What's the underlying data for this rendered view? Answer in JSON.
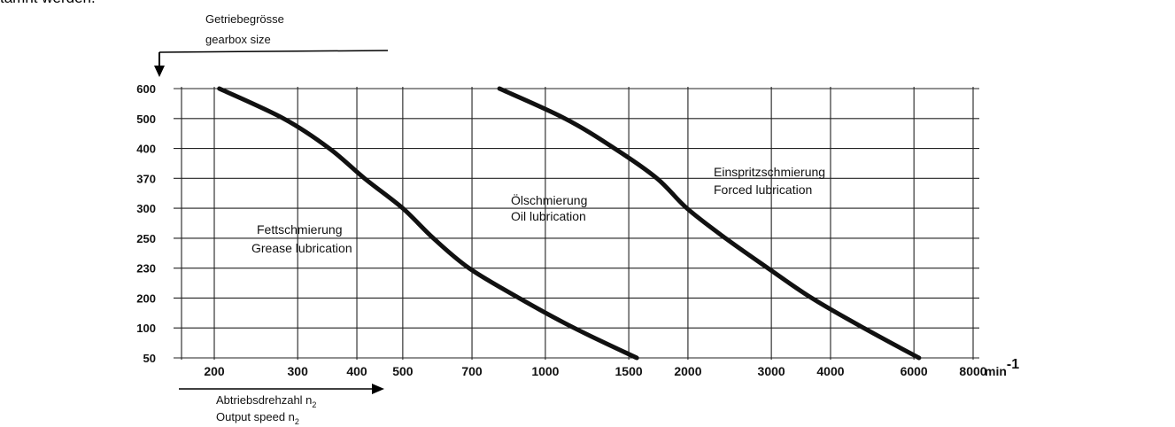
{
  "page": {
    "top_text": "tamnt werden."
  },
  "chart_data": {
    "type": "line",
    "y_label_de": "Getriebegrösse",
    "y_label_en": "gearbox size",
    "x_label_de": "Abtriebsdrehzahl n",
    "x_label_en": "Output speed n",
    "x_label_sub": "2",
    "x_unit": "min",
    "x_unit_exp": "-1",
    "y_categories": [
      "600",
      "500",
      "400",
      "370",
      "300",
      "250",
      "230",
      "200",
      "100",
      "50"
    ],
    "x_ticks": [
      "200",
      "300",
      "400",
      "500",
      "700",
      "1000",
      "1500",
      "2000",
      "3000",
      "4000",
      "6000",
      "8000"
    ],
    "x_scale": "log",
    "x_range": [
      200,
      8000
    ],
    "grid": true,
    "regions": [
      {
        "line1": "Fettschmierung",
        "line2": "Grease lubrication"
      },
      {
        "line1": "Ölschmierung",
        "line2": "Oil lubrication"
      },
      {
        "line1": "Einspritzschmierung",
        "line2": "Forced lubrication"
      }
    ],
    "series": [
      {
        "points": [
          {
            "y": "600",
            "x": 205
          },
          {
            "y": "500",
            "x": 280
          },
          {
            "y": "400",
            "x": 350
          },
          {
            "y": "370",
            "x": 415
          },
          {
            "y": "300",
            "x": 500
          },
          {
            "y": "250",
            "x": 580
          },
          {
            "y": "230",
            "x": 690
          },
          {
            "y": "200",
            "x": 880
          },
          {
            "y": "100",
            "x": 1150
          },
          {
            "y": "50",
            "x": 1560
          }
        ]
      },
      {
        "points": [
          {
            "y": "600",
            "x": 800
          },
          {
            "y": "500",
            "x": 1100
          },
          {
            "y": "400",
            "x": 1400
          },
          {
            "y": "370",
            "x": 1720
          },
          {
            "y": "300",
            "x": 1990
          },
          {
            "y": "250",
            "x": 2400
          },
          {
            "y": "230",
            "x": 2950
          },
          {
            "y": "200",
            "x": 3650
          },
          {
            "y": "100",
            "x": 4700
          },
          {
            "y": "50",
            "x": 6150
          }
        ]
      }
    ]
  }
}
